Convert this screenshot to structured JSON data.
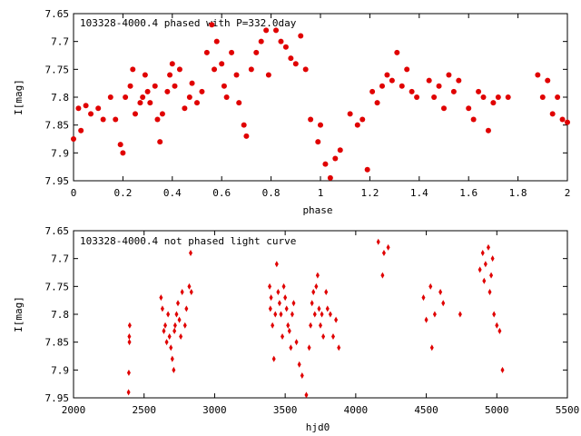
{
  "colors": {
    "points": "#e00000",
    "axes": "#000000",
    "background": "#ffffff"
  },
  "chart_data": [
    {
      "type": "scatter",
      "title": "103328-4000.4 phased with P=332.0day",
      "xlabel": "phase",
      "ylabel": "I[mag]",
      "xlim": [
        0,
        2
      ],
      "ylim": [
        7.65,
        7.95
      ],
      "y_inverted": true,
      "xticks": [
        "0",
        "0.2",
        "0.4",
        "0.6",
        "0.8",
        "1",
        "1.2",
        "1.4",
        "1.6",
        "1.8",
        "2"
      ],
      "yticks": [
        "7.65",
        "7.7",
        "7.75",
        "7.8",
        "7.85",
        "7.9",
        "7.95"
      ],
      "marker": "filled-circle",
      "x": [
        0.0,
        0.02,
        0.03,
        0.05,
        0.07,
        0.1,
        0.12,
        0.15,
        0.17,
        0.19,
        0.2,
        0.21,
        0.23,
        0.24,
        0.25,
        0.27,
        0.28,
        0.29,
        0.3,
        0.31,
        0.33,
        0.34,
        0.35,
        0.36,
        0.38,
        0.39,
        0.4,
        0.41,
        0.43,
        0.45,
        0.47,
        0.48,
        0.5,
        0.52,
        0.54,
        0.56,
        0.57,
        0.58,
        0.6,
        0.61,
        0.62,
        0.64,
        0.66,
        0.67,
        0.69,
        0.7,
        0.72,
        0.74,
        0.76,
        0.78,
        0.79,
        0.82,
        0.84,
        0.86,
        0.88,
        0.9,
        0.92,
        0.94,
        0.96,
        0.99,
        1.0,
        1.02,
        1.04,
        1.06,
        1.08,
        1.12,
        1.15,
        1.17,
        1.19,
        1.21,
        1.23,
        1.25,
        1.27,
        1.29,
        1.31,
        1.33,
        1.35,
        1.37,
        1.39,
        1.44,
        1.46,
        1.48,
        1.5,
        1.52,
        1.54,
        1.56,
        1.6,
        1.62,
        1.64,
        1.66,
        1.68,
        1.7,
        1.72,
        1.76,
        1.88,
        1.9,
        1.92,
        1.94,
        1.96,
        1.98,
        2.0
      ],
      "y": [
        7.875,
        7.82,
        7.86,
        7.815,
        7.83,
        7.82,
        7.84,
        7.8,
        7.84,
        7.885,
        7.9,
        7.8,
        7.78,
        7.75,
        7.83,
        7.81,
        7.8,
        7.76,
        7.79,
        7.81,
        7.78,
        7.84,
        7.88,
        7.83,
        7.79,
        7.76,
        7.74,
        7.78,
        7.75,
        7.82,
        7.8,
        7.775,
        7.81,
        7.79,
        7.72,
        7.67,
        7.75,
        7.7,
        7.74,
        7.78,
        7.8,
        7.72,
        7.76,
        7.81,
        7.85,
        7.87,
        7.75,
        7.72,
        7.7,
        7.68,
        7.76,
        7.68,
        7.7,
        7.71,
        7.73,
        7.74,
        7.69,
        7.75,
        7.84,
        7.88,
        7.85,
        7.92,
        7.945,
        7.91,
        7.895,
        7.83,
        7.85,
        7.84,
        7.93,
        7.79,
        7.81,
        7.78,
        7.76,
        7.77,
        7.72,
        7.78,
        7.75,
        7.79,
        7.8,
        7.77,
        7.8,
        7.78,
        7.82,
        7.76,
        7.79,
        7.77,
        7.82,
        7.84,
        7.79,
        7.8,
        7.86,
        7.81,
        7.8,
        7.8,
        7.76,
        7.8,
        7.77,
        7.83,
        7.8,
        7.84,
        7.845
      ]
    },
    {
      "type": "scatter",
      "title": "103328-4000.4 not phased light curve",
      "xlabel": "hjd0",
      "ylabel": "I[mag]",
      "xlim": [
        2000,
        5500
      ],
      "ylim": [
        7.65,
        7.95
      ],
      "y_inverted": true,
      "xticks": [
        "2000",
        "2500",
        "3000",
        "3500",
        "4000",
        "4500",
        "5000",
        "5500"
      ],
      "yticks": [
        "7.65",
        "7.7",
        "7.75",
        "7.8",
        "7.85",
        "7.9",
        "7.95"
      ],
      "marker": "diamond",
      "x": [
        2390,
        2392,
        2395,
        2396,
        2398,
        2620,
        2630,
        2640,
        2650,
        2660,
        2670,
        2680,
        2690,
        2700,
        2710,
        2715,
        2720,
        2730,
        2740,
        2750,
        2760,
        2770,
        2790,
        2800,
        2820,
        2830,
        2835,
        3390,
        3395,
        3400,
        3410,
        3420,
        3430,
        3440,
        3450,
        3460,
        3470,
        3480,
        3490,
        3500,
        3510,
        3520,
        3530,
        3540,
        3550,
        3560,
        3580,
        3600,
        3620,
        3650,
        3670,
        3680,
        3690,
        3700,
        3710,
        3720,
        3730,
        3740,
        3750,
        3760,
        3770,
        3790,
        3800,
        3820,
        3840,
        3860,
        3880,
        4160,
        4190,
        4200,
        4230,
        4480,
        4500,
        4530,
        4540,
        4560,
        4600,
        4620,
        4740,
        4880,
        4900,
        4910,
        4920,
        4940,
        4950,
        4960,
        4970,
        4980,
        5000,
        5020,
        5040
      ],
      "y": [
        7.94,
        7.905,
        7.84,
        7.85,
        7.82,
        7.77,
        7.79,
        7.83,
        7.82,
        7.85,
        7.8,
        7.84,
        7.86,
        7.88,
        7.9,
        7.83,
        7.82,
        7.8,
        7.78,
        7.81,
        7.84,
        7.76,
        7.82,
        7.79,
        7.75,
        7.69,
        7.76,
        7.75,
        7.79,
        7.77,
        7.82,
        7.88,
        7.8,
        7.71,
        7.76,
        7.78,
        7.8,
        7.84,
        7.75,
        7.77,
        7.79,
        7.82,
        7.83,
        7.86,
        7.8,
        7.78,
        7.85,
        7.89,
        7.91,
        7.945,
        7.86,
        7.82,
        7.78,
        7.76,
        7.8,
        7.75,
        7.73,
        7.79,
        7.82,
        7.8,
        7.84,
        7.76,
        7.79,
        7.8,
        7.84,
        7.81,
        7.86,
        7.67,
        7.73,
        7.69,
        7.68,
        7.77,
        7.81,
        7.75,
        7.86,
        7.8,
        7.76,
        7.78,
        7.8,
        7.72,
        7.69,
        7.74,
        7.71,
        7.68,
        7.76,
        7.73,
        7.7,
        7.8,
        7.82,
        7.83,
        7.9
      ]
    }
  ]
}
